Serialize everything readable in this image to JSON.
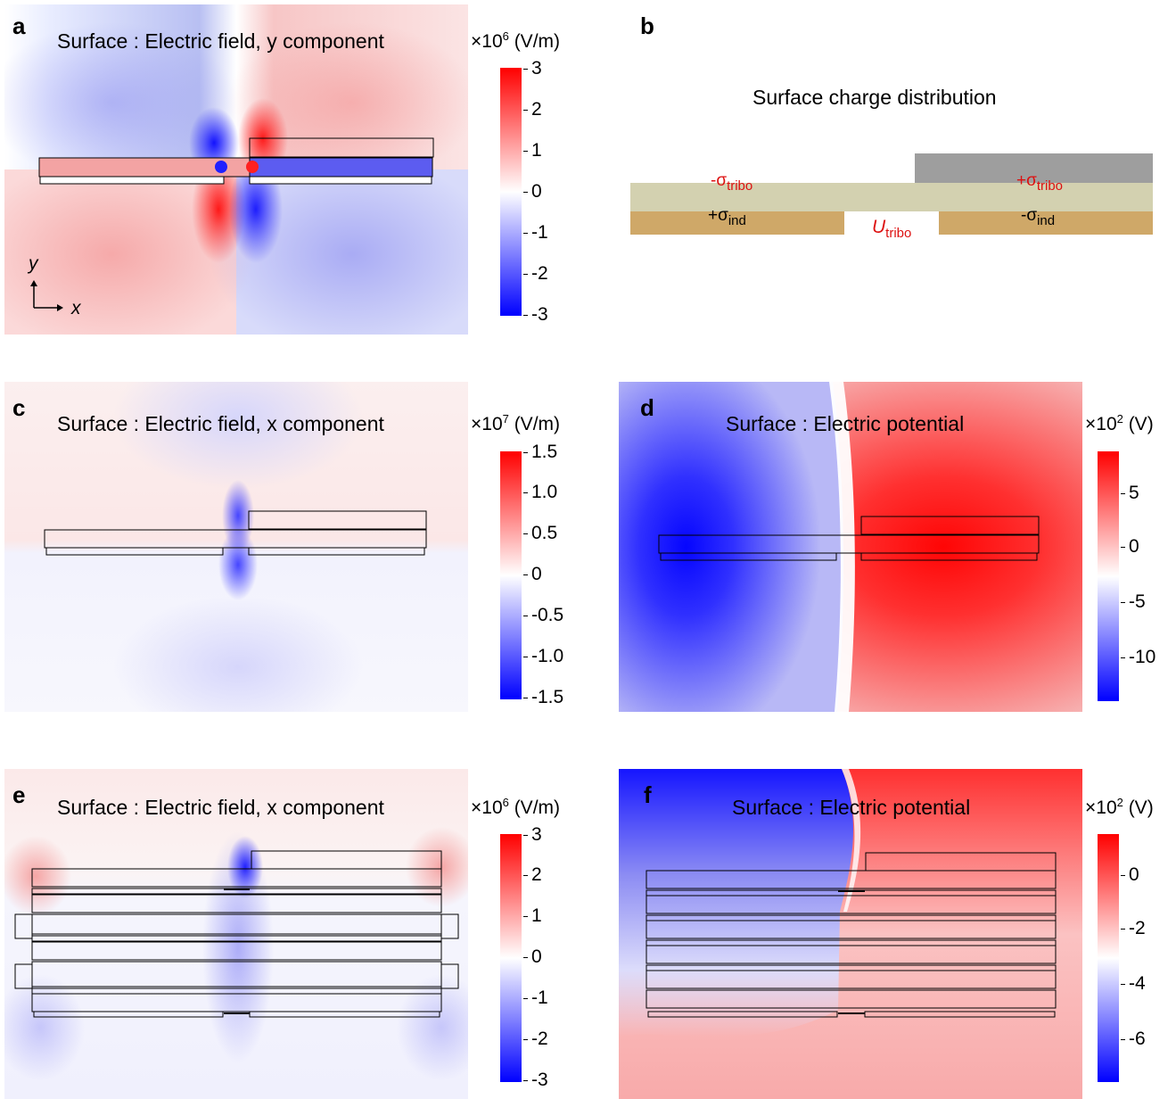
{
  "panels": {
    "a": {
      "letter": "a",
      "title": "Surface : Electric field, y component",
      "unit_base": "×10",
      "unit_exp": "6",
      "unit": " (V/m)",
      "ticks": [
        "3",
        "2",
        "1",
        "0",
        "-1",
        "-2",
        "-3"
      ],
      "axis_y": "y",
      "axis_x": "x"
    },
    "b": {
      "letter": "b",
      "title": "Surface charge distribution",
      "neg_tribo": "-σ",
      "neg_tribo_sub": "tribo",
      "pos_tribo": "+σ",
      "pos_tribo_sub": "tribo",
      "pos_ind": "+σ",
      "pos_ind_sub": "ind",
      "neg_ind": "-σ",
      "neg_ind_sub": "ind",
      "u": "U",
      "u_sub": "tribo"
    },
    "c": {
      "letter": "c",
      "title": "Surface : Electric field, x component",
      "unit_base": "×10",
      "unit_exp": "7",
      "unit": " (V/m)",
      "ticks": [
        "1.5",
        "1.0",
        "0.5",
        "0",
        "-0.5",
        "-1.0",
        "-1.5"
      ]
    },
    "d": {
      "letter": "d",
      "title": "Surface : Electric potential",
      "unit_base": "×10",
      "unit_exp": "2",
      "unit": " (V)",
      "ticks": [
        "5",
        "0",
        "-5",
        "-10"
      ]
    },
    "e": {
      "letter": "e",
      "title": "Surface : Electric field, x component",
      "unit_base": "×10",
      "unit_exp": "6",
      "unit": " (V/m)",
      "ticks": [
        "3",
        "2",
        "1",
        "0",
        "-1",
        "-2",
        "-3"
      ]
    },
    "f": {
      "letter": "f",
      "title": "Surface : Electric potential",
      "unit_base": "×10",
      "unit_exp": "2",
      "unit": " (V)",
      "ticks": [
        "0",
        "-2",
        "-4",
        "-6"
      ]
    }
  },
  "colors": {
    "red": "#ff0000",
    "blue": "#0000ff",
    "tan": "#cfa868",
    "olive": "#d3d1b0",
    "gray": "#9e9e9e",
    "charge_red": "#d11111"
  }
}
